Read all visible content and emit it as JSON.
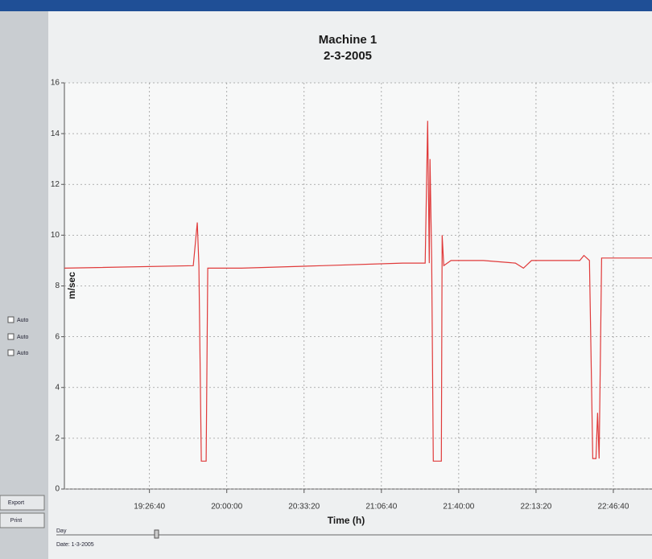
{
  "chart_data": {
    "type": "line",
    "title": "Machine 1",
    "subtitle": "2-3-2005",
    "x_label": "Time (h)",
    "y_label": "m/sec",
    "xlim": [
      67800,
      83000
    ],
    "xticks": [
      {
        "value": 70000,
        "label": "19:26:40"
      },
      {
        "value": 72000,
        "label": "20:00:00"
      },
      {
        "value": 74000,
        "label": "20:33:20"
      },
      {
        "value": 76000,
        "label": "21:06:40"
      },
      {
        "value": 78000,
        "label": "21:40:00"
      },
      {
        "value": 80000,
        "label": "22:13:20"
      },
      {
        "value": 82000,
        "label": "22:46:40"
      }
    ],
    "ylim": [
      0,
      16
    ],
    "yticks": [
      0,
      2,
      4,
      6,
      8,
      10,
      12,
      14,
      16
    ],
    "grid": true,
    "series": [
      {
        "color": "#e03a3a",
        "x": [
          67800,
          71133,
          71238,
          71279,
          71342,
          71467,
          71508,
          72383,
          74467,
          76550,
          77133,
          77196,
          77238,
          77258,
          77300,
          77342,
          77550,
          77571,
          77613,
          77800,
          78633,
          79467,
          79675,
          79883,
          81133,
          81238,
          81383,
          81467,
          81550,
          81592,
          81633,
          81696,
          83000
        ],
        "values": [
          8.7,
          8.8,
          10.5,
          8.8,
          1.1,
          1.1,
          8.7,
          8.7,
          8.8,
          8.9,
          8.9,
          14.5,
          8.9,
          13,
          9,
          1.1,
          1.1,
          10,
          8.8,
          9,
          9,
          8.9,
          8.7,
          9,
          9,
          9.2,
          9,
          1.2,
          1.2,
          3,
          1.2,
          9.1,
          9.1
        ]
      }
    ]
  },
  "ui": {
    "checkboxes": [
      "Auto",
      "Auto",
      "Auto"
    ],
    "buttons": [
      "Export",
      "Print"
    ],
    "slider_label": "Day",
    "date": "Date: 1-3-2005"
  }
}
